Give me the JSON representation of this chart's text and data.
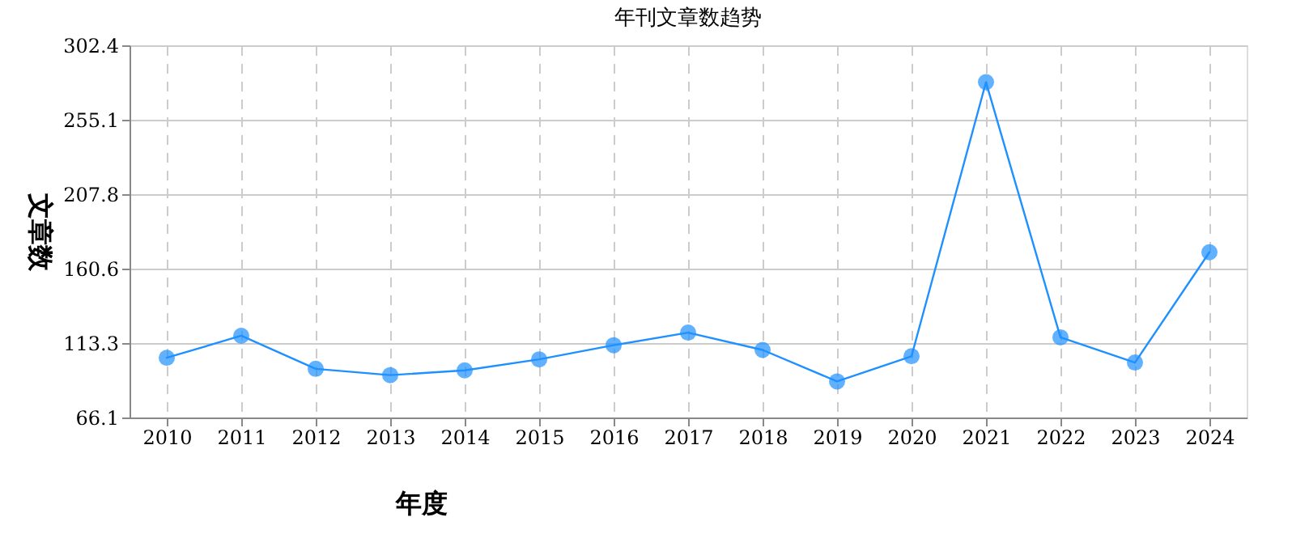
{
  "chart_data": {
    "type": "line",
    "title": "年刊文章数趋势",
    "xlabel": "年度",
    "ylabel": "文章数",
    "categories": [
      "2010",
      "2011",
      "2012",
      "2013",
      "2014",
      "2015",
      "2016",
      "2017",
      "2018",
      "2019",
      "2020",
      "2021",
      "2022",
      "2023",
      "2024"
    ],
    "series": [
      {
        "color": "#1e90ff",
        "values": [
          104,
          118,
          97,
          93,
          96,
          103,
          112,
          120,
          109,
          89,
          105,
          279,
          117,
          101,
          171
        ]
      }
    ],
    "ylim": [
      66.1,
      302.4
    ],
    "yticks": [
      66.1,
      113.3,
      160.6,
      207.8,
      255.1,
      302.4
    ],
    "grid": true,
    "legend": false,
    "marker": "circle",
    "line_style": "solid"
  }
}
